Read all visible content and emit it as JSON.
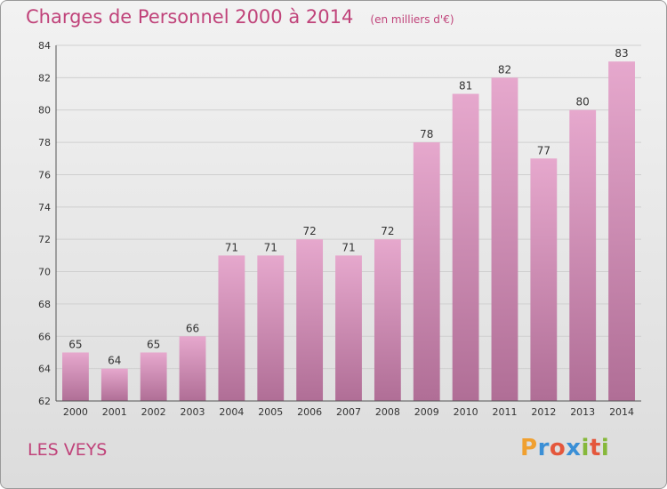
{
  "title": "Charges de Personnel 2000 à 2014",
  "subtitle": "(en milliers d'€)",
  "place": "LES VEYS",
  "logo": {
    "letters": [
      {
        "char": "P",
        "color": "#f0a030"
      },
      {
        "char": "r",
        "color": "#3a8fd6"
      },
      {
        "char": "o",
        "color": "#e4573c"
      },
      {
        "char": "x",
        "color": "#3a8fd6"
      },
      {
        "char": "i",
        "color": "#86b83a"
      },
      {
        "char": "t",
        "color": "#e4573c"
      },
      {
        "char": "i",
        "color": "#86b83a"
      }
    ]
  },
  "colors": {
    "text_accent": "#c0437a",
    "bar_top": "#e6a8cd",
    "bar_bottom": "#b06e96",
    "grid": "#cfcfcf"
  },
  "chart_data": {
    "type": "bar",
    "title": "Charges de Personnel 2000 à 2014",
    "subtitle": "(en milliers d'€)",
    "categories": [
      "2000",
      "2001",
      "2002",
      "2003",
      "2004",
      "2005",
      "2006",
      "2007",
      "2008",
      "2009",
      "2010",
      "2011",
      "2012",
      "2013",
      "2014"
    ],
    "values": [
      65,
      64,
      65,
      66,
      71,
      71,
      72,
      71,
      72,
      78,
      81,
      82,
      77,
      80,
      83
    ],
    "ylim": [
      62,
      84
    ],
    "yticks": [
      62,
      64,
      66,
      68,
      70,
      72,
      74,
      76,
      78,
      80,
      82,
      84
    ],
    "grid": true,
    "legend": "none"
  }
}
